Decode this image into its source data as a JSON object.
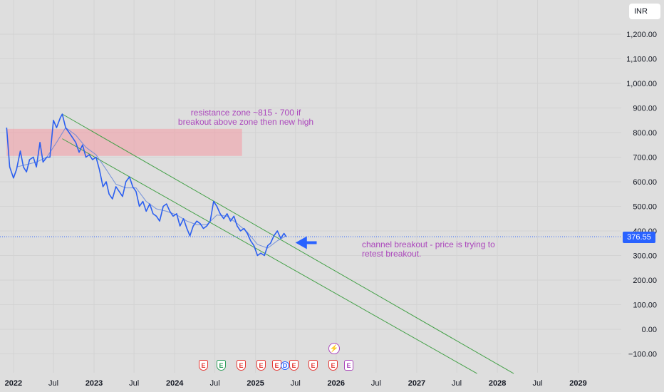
{
  "currency": "INR",
  "last_price_label": "376.55",
  "colors": {
    "price_line": "#2b5ff0",
    "moving_average": "#5b7fd9",
    "channel": "#43a047",
    "resistance_zone": "#f2a0a8",
    "annotation": "#ab47bc",
    "price_tag": "#2962ff"
  },
  "annotations": {
    "resistance": [
      "resistance zone ~815 - 700 if",
      "breakout above zone then new high"
    ],
    "channel": [
      "channel breakout - price is trying to",
      "retest breakout."
    ]
  },
  "events": [
    {
      "label": "E",
      "kind": "earnings"
    },
    {
      "label": "E",
      "kind": "earnings-beat"
    },
    {
      "label": "E",
      "kind": "earnings"
    },
    {
      "label": "E",
      "kind": "earnings"
    },
    {
      "label": "E",
      "kind": "earnings"
    },
    {
      "label": "D",
      "kind": "dividend"
    },
    {
      "label": "E",
      "kind": "earnings"
    },
    {
      "label": "E",
      "kind": "earnings"
    },
    {
      "label": "E",
      "kind": "earnings"
    },
    {
      "label": "E",
      "kind": "future"
    },
    {
      "label": "⚡",
      "kind": "split"
    }
  ],
  "chart_data": {
    "type": "line",
    "y_axis": {
      "ticks": [
        -100,
        0,
        100,
        200,
        300,
        400,
        500,
        600,
        700,
        800,
        900,
        1000,
        1100,
        1200
      ],
      "tick_labels": [
        "−100.00",
        "0.00",
        "100.00",
        "200.00",
        "300.00",
        "400.00",
        "500.00",
        "600.00",
        "700.00",
        "800.00",
        "900.00",
        "1,000.00",
        "1,100.00",
        "1,200.00"
      ],
      "range": [
        -130,
        1250
      ],
      "position": "right"
    },
    "x_axis": {
      "range": [
        "2021-11-01",
        "2029-07-15"
      ],
      "ticks": [
        {
          "date": "2022-01-01",
          "label": "2022"
        },
        {
          "date": "2022-07-01",
          "label": "Jul"
        },
        {
          "date": "2023-01-01",
          "label": "2023"
        },
        {
          "date": "2023-07-01",
          "label": "Jul"
        },
        {
          "date": "2024-01-01",
          "label": "2024"
        },
        {
          "date": "2024-07-01",
          "label": "Jul"
        },
        {
          "date": "2025-01-01",
          "label": "2025"
        },
        {
          "date": "2025-07-01",
          "label": "Jul"
        },
        {
          "date": "2026-01-01",
          "label": "2026"
        },
        {
          "date": "2026-07-01",
          "label": "Jul"
        },
        {
          "date": "2027-01-01",
          "label": "2027"
        },
        {
          "date": "2027-07-01",
          "label": "Jul"
        },
        {
          "date": "2028-01-01",
          "label": "2028"
        },
        {
          "date": "2028-07-01",
          "label": "Jul"
        },
        {
          "date": "2029-01-01",
          "label": "2029"
        }
      ]
    },
    "grid": true,
    "last_price": 376.55,
    "resistance_zone": {
      "from": "2021-12-01",
      "to": "2024-11-01",
      "low": 705,
      "high": 815
    },
    "channel_lines": [
      {
        "from": {
          "date": "2022-08-10",
          "value": 875
        },
        "to": {
          "date": "2028-03-15",
          "value": -180
        }
      },
      {
        "from": {
          "date": "2022-08-10",
          "value": 775
        },
        "to": {
          "date": "2027-10-01",
          "value": -180
        }
      }
    ],
    "arrow": {
      "tail": {
        "date": "2025-10-05",
        "value": 352
      },
      "head": {
        "date": "2025-07-01",
        "value": 352
      }
    },
    "series": [
      {
        "points": [
          [
            "2021-12-01",
            820
          ],
          [
            "2021-12-15",
            660
          ],
          [
            "2022-01-01",
            615
          ],
          [
            "2022-01-15",
            650
          ],
          [
            "2022-02-01",
            725
          ],
          [
            "2022-02-15",
            660
          ],
          [
            "2022-03-01",
            640
          ],
          [
            "2022-03-15",
            690
          ],
          [
            "2022-04-01",
            700
          ],
          [
            "2022-04-15",
            660
          ],
          [
            "2022-05-01",
            760
          ],
          [
            "2022-05-15",
            680
          ],
          [
            "2022-06-01",
            700
          ],
          [
            "2022-06-15",
            700
          ],
          [
            "2022-07-01",
            850
          ],
          [
            "2022-07-15",
            820
          ],
          [
            "2022-08-01",
            860
          ],
          [
            "2022-08-10",
            875
          ],
          [
            "2022-08-25",
            820
          ],
          [
            "2022-09-10",
            800
          ],
          [
            "2022-09-25",
            780
          ],
          [
            "2022-10-10",
            760
          ],
          [
            "2022-10-25",
            720
          ],
          [
            "2022-11-10",
            750
          ],
          [
            "2022-11-25",
            700
          ],
          [
            "2022-12-10",
            710
          ],
          [
            "2022-12-25",
            690
          ],
          [
            "2023-01-10",
            700
          ],
          [
            "2023-01-25",
            650
          ],
          [
            "2023-02-10",
            580
          ],
          [
            "2023-02-25",
            600
          ],
          [
            "2023-03-10",
            550
          ],
          [
            "2023-03-25",
            530
          ],
          [
            "2023-04-10",
            580
          ],
          [
            "2023-04-25",
            560
          ],
          [
            "2023-05-10",
            540
          ],
          [
            "2023-05-25",
            600
          ],
          [
            "2023-06-10",
            620
          ],
          [
            "2023-06-25",
            580
          ],
          [
            "2023-07-10",
            560
          ],
          [
            "2023-07-25",
            500
          ],
          [
            "2023-08-10",
            520
          ],
          [
            "2023-08-25",
            480
          ],
          [
            "2023-09-10",
            510
          ],
          [
            "2023-09-25",
            470
          ],
          [
            "2023-10-10",
            460
          ],
          [
            "2023-10-25",
            440
          ],
          [
            "2023-11-10",
            500
          ],
          [
            "2023-11-25",
            510
          ],
          [
            "2023-12-10",
            480
          ],
          [
            "2023-12-25",
            460
          ],
          [
            "2024-01-10",
            470
          ],
          [
            "2024-01-25",
            420
          ],
          [
            "2024-02-10",
            450
          ],
          [
            "2024-02-25",
            410
          ],
          [
            "2024-03-10",
            380
          ],
          [
            "2024-03-25",
            420
          ],
          [
            "2024-04-10",
            440
          ],
          [
            "2024-04-25",
            430
          ],
          [
            "2024-05-10",
            410
          ],
          [
            "2024-05-25",
            420
          ],
          [
            "2024-06-10",
            440
          ],
          [
            "2024-06-25",
            520
          ],
          [
            "2024-07-10",
            500
          ],
          [
            "2024-07-25",
            470
          ],
          [
            "2024-08-10",
            450
          ],
          [
            "2024-08-25",
            470
          ],
          [
            "2024-09-10",
            440
          ],
          [
            "2024-09-25",
            460
          ],
          [
            "2024-10-10",
            420
          ],
          [
            "2024-10-25",
            400
          ],
          [
            "2024-11-10",
            410
          ],
          [
            "2024-11-25",
            390
          ],
          [
            "2024-12-10",
            360
          ],
          [
            "2024-12-25",
            340
          ],
          [
            "2025-01-10",
            300
          ],
          [
            "2025-01-25",
            310
          ],
          [
            "2025-02-10",
            300
          ],
          [
            "2025-02-25",
            340
          ],
          [
            "2025-03-10",
            350
          ],
          [
            "2025-03-25",
            380
          ],
          [
            "2025-04-10",
            400
          ],
          [
            "2025-04-25",
            370
          ],
          [
            "2025-05-10",
            390
          ],
          [
            "2025-05-20",
            376.55
          ]
        ]
      },
      {
        "points": [
          [
            "2022-01-15",
            660
          ],
          [
            "2022-03-01",
            670
          ],
          [
            "2022-04-15",
            680
          ],
          [
            "2022-06-01",
            700
          ],
          [
            "2022-07-15",
            760
          ],
          [
            "2022-08-25",
            820
          ],
          [
            "2022-10-10",
            790
          ],
          [
            "2022-11-25",
            740
          ],
          [
            "2023-01-10",
            710
          ],
          [
            "2023-02-25",
            650
          ],
          [
            "2023-04-10",
            590
          ],
          [
            "2023-05-25",
            575
          ],
          [
            "2023-07-10",
            575
          ],
          [
            "2023-08-25",
            520
          ],
          [
            "2023-10-10",
            490
          ],
          [
            "2023-11-25",
            480
          ],
          [
            "2024-01-10",
            465
          ],
          [
            "2024-02-25",
            440
          ],
          [
            "2024-04-10",
            425
          ],
          [
            "2024-05-25",
            425
          ],
          [
            "2024-07-10",
            465
          ],
          [
            "2024-08-25",
            460
          ],
          [
            "2024-10-10",
            430
          ],
          [
            "2024-11-25",
            395
          ],
          [
            "2025-01-10",
            345
          ],
          [
            "2025-02-25",
            330
          ],
          [
            "2025-04-10",
            360
          ],
          [
            "2025-05-20",
            380
          ]
        ]
      }
    ]
  }
}
